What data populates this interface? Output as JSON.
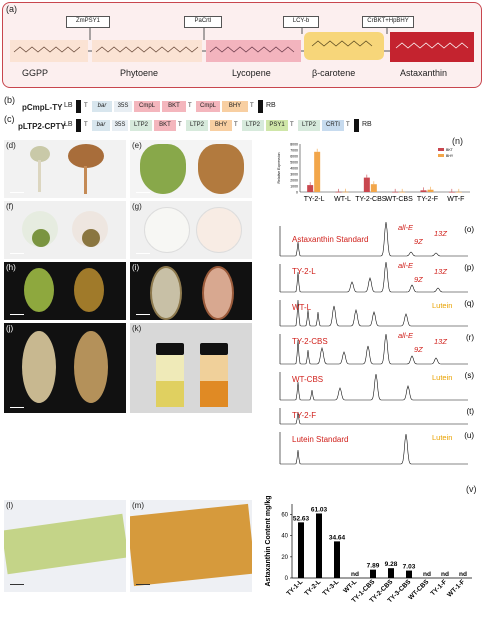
{
  "panel_a": {
    "label": "(a)",
    "enzymes": [
      "ZmPSY1",
      "PaCrtI",
      "LCY-b",
      "CrBKT+HpBHY"
    ],
    "compounds": [
      "GGPP",
      "Phytoene",
      "Lycopene",
      "β-carotene",
      "Astaxanthin"
    ]
  },
  "panel_b": {
    "label": "(b)",
    "construct": "pCmpL-TY",
    "elements": [
      "LB",
      "T",
      "bar",
      "35S",
      "CmpL",
      "BKT",
      "T",
      "CmpL",
      "BHY",
      "T",
      "RB"
    ]
  },
  "panel_c": {
    "label": "(c)",
    "construct": "pLTP2-CPTY",
    "elements": [
      "LB",
      "T",
      "bar",
      "35S",
      "LTP2",
      "BKT",
      "T",
      "LTP2",
      "BHY",
      "T",
      "LTP2",
      "PSY1",
      "T",
      "LTP2",
      "CRTI",
      "T",
      "RB"
    ]
  },
  "photo_labels": [
    "(d)",
    "(e)",
    "(f)",
    "(g)",
    "(h)",
    "(i)",
    "(j)",
    "(k)",
    "(l)",
    "(m)"
  ],
  "panel_n": {
    "label": "(n)",
    "legend": [
      "BKT",
      "BHY"
    ],
    "ylabel": "Relative Expression",
    "colors": {
      "BKT": "#c9474f",
      "BHY": "#f2a64a"
    },
    "yticks": [
      "0",
      "1000",
      "2000",
      "3000",
      "4000",
      "5000",
      "6000",
      "7000",
      "8000"
    ]
  },
  "chromatograms": [
    {
      "label": "(o)",
      "name": "Astaxanthin Standard",
      "annots": [
        "all-E",
        "9Z",
        "13Z"
      ]
    },
    {
      "label": "(p)",
      "name": "TY-2-L",
      "annots": [
        "all-E",
        "9Z",
        "13Z"
      ]
    },
    {
      "label": "(q)",
      "name": "WT-L",
      "annots": [
        "Lutein"
      ]
    },
    {
      "label": "(r)",
      "name": "TY-2-CBS",
      "annots": [
        "all-E",
        "9Z",
        "13Z"
      ]
    },
    {
      "label": "(s)",
      "name": "WT-CBS",
      "annots": [
        "Lutein"
      ]
    },
    {
      "label": "(t)",
      "name": "TY-2-F",
      "annots": []
    },
    {
      "label": "(u)",
      "name": "Lutein Standard",
      "annots": [
        "Lutein"
      ]
    }
  ],
  "chart_data": [
    {
      "type": "bar",
      "title": "",
      "categories": [
        "TY-2-L",
        "WT-L",
        "TY-2-CBS",
        "WT-CBS",
        "TY-2-F",
        "WT-F"
      ],
      "series": [
        {
          "name": "BKT",
          "values": [
            1150,
            30,
            2400,
            20,
            280,
            15
          ]
        },
        {
          "name": "BHY",
          "values": [
            6700,
            40,
            1300,
            25,
            380,
            20
          ]
        }
      ],
      "ylabel": "Relative Expression",
      "ylim": [
        0,
        8000
      ],
      "legend": "top-right"
    },
    {
      "type": "bar",
      "title": "",
      "categories": [
        "TY-1-L",
        "TY-2-L",
        "TY-3-L",
        "WT-L",
        "TY-1-CBS",
        "TY-2-CBS",
        "TY-3-CBS",
        "WT-CBS",
        "TY-1-F",
        "WT-1-F"
      ],
      "values": [
        52.63,
        61.03,
        34.64,
        0,
        7.89,
        9.28,
        7.03,
        0,
        0,
        0
      ],
      "data_labels": [
        "52.63",
        "61.03",
        "34.64",
        "nd",
        "7.89",
        "9.28",
        "7.03",
        "nd",
        "nd",
        "nd"
      ],
      "ylabel": "Astaxanthin Content mg/kg",
      "ylim": [
        0,
        70
      ],
      "yticks": [
        "0",
        "20",
        "40",
        "60"
      ]
    }
  ],
  "panel_v_label": "(v)"
}
